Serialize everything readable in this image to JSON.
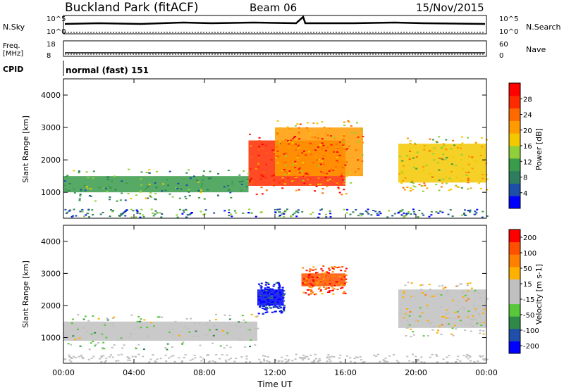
{
  "header": {
    "station": "Buckland Park (fitACF)",
    "beam": "Beam 06",
    "date": "15/Nov/2015"
  },
  "aux_panels": {
    "nsky_label": "N.Sky",
    "nsearch_label": "N.Search",
    "nsky_ticks": [
      "10^5",
      "10^0"
    ],
    "nsearch_ticks": [
      "10^5",
      "10^0"
    ],
    "freq_label": "Freq.",
    "freq_unit": "[MHz]",
    "freq_ticks": [
      "18",
      "8"
    ],
    "nave_label": "Nave",
    "nave_ticks": [
      "60",
      "0"
    ],
    "cpid_label": "CPID",
    "cpid_text": "normal (fast) 151"
  },
  "colors": {
    "power_scale": [
      "#0000ff",
      "#1e4ea8",
      "#2f7d5f",
      "#3a9b4a",
      "#8fd03a",
      "#f3c800",
      "#ff9a00",
      "#ff6a00",
      "#ff2a00",
      "#ff0000"
    ],
    "velocity_scale": [
      "#0000ff",
      "#1f4fa8",
      "#2f8a48",
      "#58c83a",
      "#c0c0c0",
      "#c0c0c0",
      "#ffb000",
      "#ff8000",
      "#ff5000",
      "#ff0000"
    ]
  },
  "chart_data": [
    {
      "type": "heatmap",
      "name": "power",
      "xlabel": "",
      "ylabel": "Slant Range [km]",
      "yticks": [
        "1000",
        "2000",
        "3000",
        "4000"
      ],
      "ylim": [
        200,
        4500
      ],
      "xlim": [
        0,
        24
      ],
      "colorbar_label": "Power [dB]",
      "colorbar_ticks": [
        "4",
        "8",
        "12",
        "16",
        "20",
        "24",
        "28"
      ],
      "bands": [
        {
          "x0": 0,
          "x1": 10.5,
          "y0": 1000,
          "y1": 1500,
          "level": 3
        },
        {
          "x0": 10.5,
          "x1": 16,
          "y0": 1200,
          "y1": 2600,
          "level": 8
        },
        {
          "x0": 12,
          "x1": 17,
          "y0": 1500,
          "y1": 3000,
          "level": 6
        },
        {
          "x0": 19,
          "x1": 24,
          "y0": 1300,
          "y1": 2500,
          "level": 5
        }
      ]
    },
    {
      "type": "heatmap",
      "name": "velocity",
      "xlabel": "Time UT",
      "ylabel": "Slant Range [km]",
      "yticks": [
        "1000",
        "2000",
        "3000",
        "4000"
      ],
      "ylim": [
        200,
        4500
      ],
      "xlim": [
        0,
        24
      ],
      "xticks": [
        "00:00",
        "04:00",
        "08:00",
        "12:00",
        "16:00",
        "20:00",
        "00:00"
      ],
      "colorbar_label": "Velocity [m s-1]",
      "colorbar_ticks": [
        "200",
        "100",
        "50",
        "15",
        "-15",
        "-50",
        "-100",
        "-200"
      ],
      "bands": [
        {
          "x0": 0,
          "x1": 11,
          "y0": 900,
          "y1": 1500,
          "level": 4
        },
        {
          "x0": 11,
          "x1": 12.5,
          "y0": 2000,
          "y1": 2500,
          "level": 0
        },
        {
          "x0": 13.5,
          "x1": 16,
          "y0": 2600,
          "y1": 3000,
          "level": 8
        },
        {
          "x0": 19,
          "x1": 24,
          "y0": 1300,
          "y1": 2500,
          "level": 5
        }
      ]
    }
  ]
}
